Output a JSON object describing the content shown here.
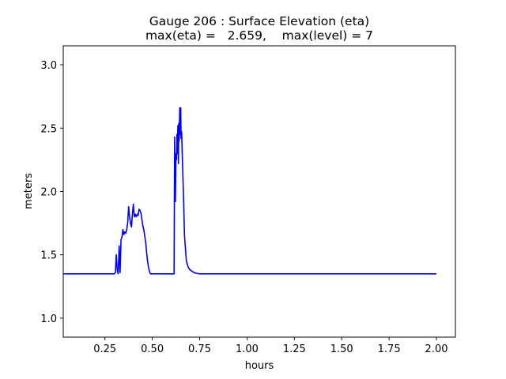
{
  "chart_data": {
    "type": "line",
    "title": "Gauge 206 : Surface Elevation (eta)",
    "subtitle": "max(eta) =   2.659,    max(level) = 7",
    "xlabel": "hours",
    "ylabel": "meters",
    "xlim": [
      0.03,
      2.1
    ],
    "ylim": [
      0.85,
      3.15
    ],
    "grid": false,
    "x_ticks": [
      0.25,
      0.5,
      0.75,
      1.0,
      1.25,
      1.5,
      1.75,
      2.0
    ],
    "x_tick_labels": [
      "0.25",
      "0.50",
      "0.75",
      "1.00",
      "1.25",
      "1.50",
      "1.75",
      "2.00"
    ],
    "y_ticks": [
      1.0,
      1.5,
      2.0,
      2.5,
      3.0
    ],
    "y_tick_labels": [
      "1.0",
      "1.5",
      "2.0",
      "2.5",
      "3.0"
    ],
    "series": [
      {
        "name": "eta",
        "color": "#0000ff",
        "x": [
          0.0,
          0.3,
          0.305,
          0.31,
          0.315,
          0.32,
          0.325,
          0.33,
          0.335,
          0.34,
          0.345,
          0.35,
          0.355,
          0.36,
          0.365,
          0.37,
          0.375,
          0.38,
          0.385,
          0.39,
          0.395,
          0.4,
          0.405,
          0.41,
          0.415,
          0.42,
          0.425,
          0.43,
          0.435,
          0.44,
          0.445,
          0.45,
          0.455,
          0.46,
          0.465,
          0.47,
          0.475,
          0.48,
          0.485,
          0.49,
          0.495,
          0.5,
          0.51,
          0.52,
          0.55,
          0.58,
          0.605,
          0.61,
          0.612,
          0.615,
          0.618,
          0.62,
          0.622,
          0.625,
          0.628,
          0.63,
          0.632,
          0.635,
          0.638,
          0.64,
          0.642,
          0.645,
          0.648,
          0.65,
          0.652,
          0.655,
          0.658,
          0.66,
          0.665,
          0.67,
          0.675,
          0.68,
          0.69,
          0.7,
          0.71,
          0.72,
          0.73,
          0.75,
          0.8,
          1.0,
          1.5,
          2.0
        ],
        "values": [
          1.35,
          1.35,
          1.36,
          1.5,
          1.38,
          1.35,
          1.57,
          1.36,
          1.62,
          1.64,
          1.7,
          1.66,
          1.68,
          1.67,
          1.7,
          1.75,
          1.88,
          1.8,
          1.75,
          1.72,
          1.82,
          1.9,
          1.8,
          1.82,
          1.8,
          1.82,
          1.81,
          1.86,
          1.85,
          1.83,
          1.78,
          1.73,
          1.7,
          1.65,
          1.6,
          1.52,
          1.45,
          1.4,
          1.37,
          1.35,
          1.35,
          1.35,
          1.35,
          1.35,
          1.35,
          1.35,
          1.35,
          1.35,
          1.35,
          1.35,
          2.43,
          2.1,
          1.92,
          2.3,
          2.25,
          2.45,
          2.3,
          2.52,
          2.22,
          2.54,
          2.4,
          2.66,
          2.45,
          2.66,
          2.42,
          2.47,
          2.3,
          2.2,
          1.95,
          1.65,
          1.55,
          1.45,
          1.4,
          1.38,
          1.37,
          1.36,
          1.355,
          1.35,
          1.35,
          1.35,
          1.35,
          1.35
        ]
      }
    ]
  }
}
